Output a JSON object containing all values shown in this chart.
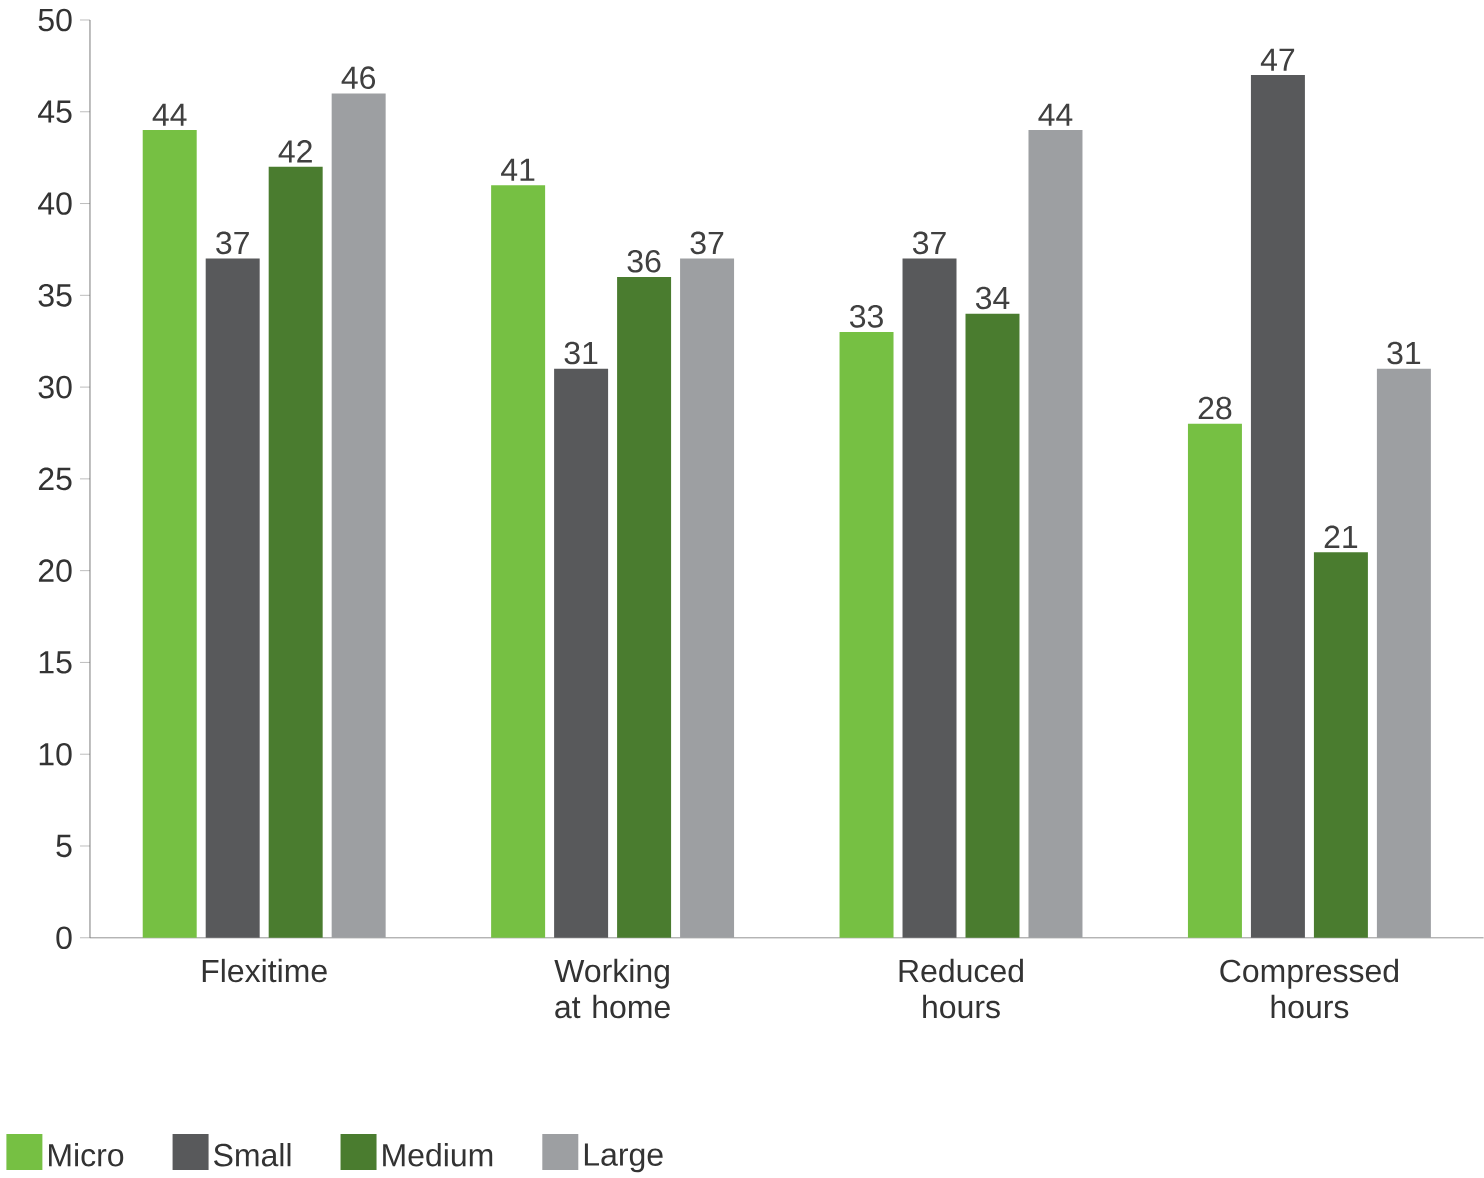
{
  "chart_data": {
    "type": "bar",
    "categories": [
      "Flexitime",
      "Working at home",
      "Reduced hours",
      "Compressed hours"
    ],
    "series": [
      {
        "name": "Micro",
        "color": "#76c043",
        "values": [
          44,
          41,
          33,
          28
        ]
      },
      {
        "name": "Small",
        "color": "#58595b",
        "values": [
          37,
          31,
          37,
          47
        ]
      },
      {
        "name": "Medium",
        "color": "#4a7c2f",
        "values": [
          42,
          36,
          34,
          21
        ]
      },
      {
        "name": "Large",
        "color": "#9d9fa2",
        "values": [
          46,
          37,
          44,
          31
        ]
      }
    ],
    "ylim": [
      0,
      50
    ],
    "yticks": [
      0,
      5,
      10,
      15,
      20,
      25,
      30,
      35,
      40,
      45,
      50
    ],
    "data_labels": true,
    "legend": "bottom left"
  }
}
